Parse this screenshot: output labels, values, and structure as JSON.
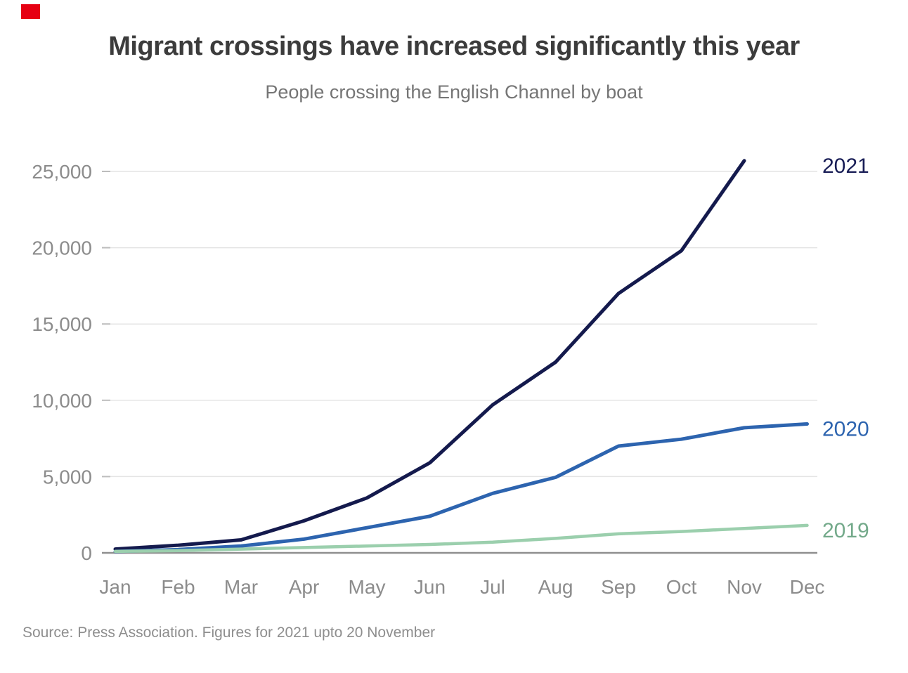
{
  "brand": {
    "mark_color": "#e60012"
  },
  "header": {
    "title": "Migrant crossings have increased significantly this year",
    "subtitle": "People crossing the English Channel by boat"
  },
  "footer": {
    "source": "Source: Press Association. Figures for 2021 upto 20 November"
  },
  "chart_data": {
    "type": "line",
    "title": "Migrant crossings have increased significantly this year",
    "subtitle": "People crossing the English Channel by boat",
    "categories": [
      "Jan",
      "Feb",
      "Mar",
      "Apr",
      "May",
      "Jun",
      "Jul",
      "Aug",
      "Sep",
      "Oct",
      "Nov",
      "Dec"
    ],
    "series": [
      {
        "name": "2021",
        "color": "#141a4d",
        "label_color": "#171c55",
        "stroke_width": 5,
        "values": [
          250,
          500,
          850,
          2100,
          3600,
          5900,
          9700,
          12500,
          17000,
          19800,
          25700
        ]
      },
      {
        "name": "2020",
        "color": "#2d64af",
        "label_color": "#2d64af",
        "stroke_width": 5,
        "values": [
          90,
          215,
          450,
          900,
          1650,
          2400,
          3900,
          4950,
          7000,
          7450,
          8200,
          8450
        ]
      },
      {
        "name": "2019",
        "color": "#9bcfad",
        "label_color": "#73a98a",
        "stroke_width": 4.5,
        "values": [
          100,
          150,
          250,
          350,
          450,
          550,
          700,
          950,
          1250,
          1400,
          1600,
          1800
        ]
      }
    ],
    "yticks": [
      0,
      5000,
      10000,
      15000,
      20000,
      25000
    ],
    "ytick_labels": [
      "0",
      "5,000",
      "10,000",
      "15,000",
      "20,000",
      "25,000"
    ],
    "ylim": [
      0,
      25000
    ],
    "xlabel": "",
    "ylabel": "",
    "grid": true,
    "legend_position": "right-of-line-ends",
    "axis_label_color": "#8c8c8c",
    "gridline_color": "#e4e4e4",
    "tick_color": "#bdbdbd",
    "zeroline_color": "#8f8f8f"
  }
}
